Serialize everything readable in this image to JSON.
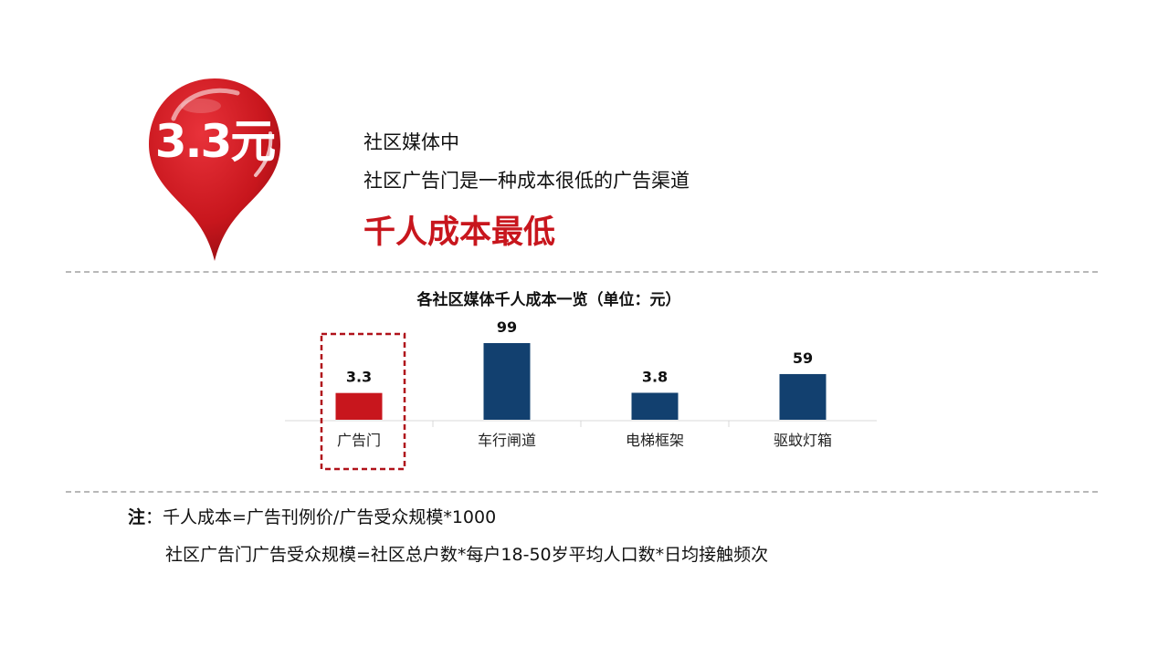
{
  "pin": {
    "value": "3.3元",
    "color": "#c8161d"
  },
  "headline": {
    "line1": "社区媒体中",
    "line2": "社区广告门是一种成本很低的广告渠道",
    "emphasis": "千人成本最低"
  },
  "chart_data": {
    "type": "bar",
    "title": "各社区媒体千人成本一览（单位：元）",
    "categories": [
      "广告门",
      "车行闸道",
      "电梯框架",
      "驱蚊灯箱"
    ],
    "values": [
      3.3,
      99,
      3.8,
      59
    ],
    "value_labels": [
      "3.3",
      "99",
      "3.8",
      "59"
    ],
    "highlight_index": 0,
    "colors": {
      "highlight": "#c8161d",
      "default": "#12406f",
      "highlight_box": "#b0121a"
    },
    "legend": "none",
    "grid": false
  },
  "notes": {
    "label": "注",
    "line1": "：千人成本=广告刊例价/广告受众规模*1000",
    "line2": "社区广告门广告受众规模=社区总户数*每户18-50岁平均人口数*日均接触频次"
  }
}
